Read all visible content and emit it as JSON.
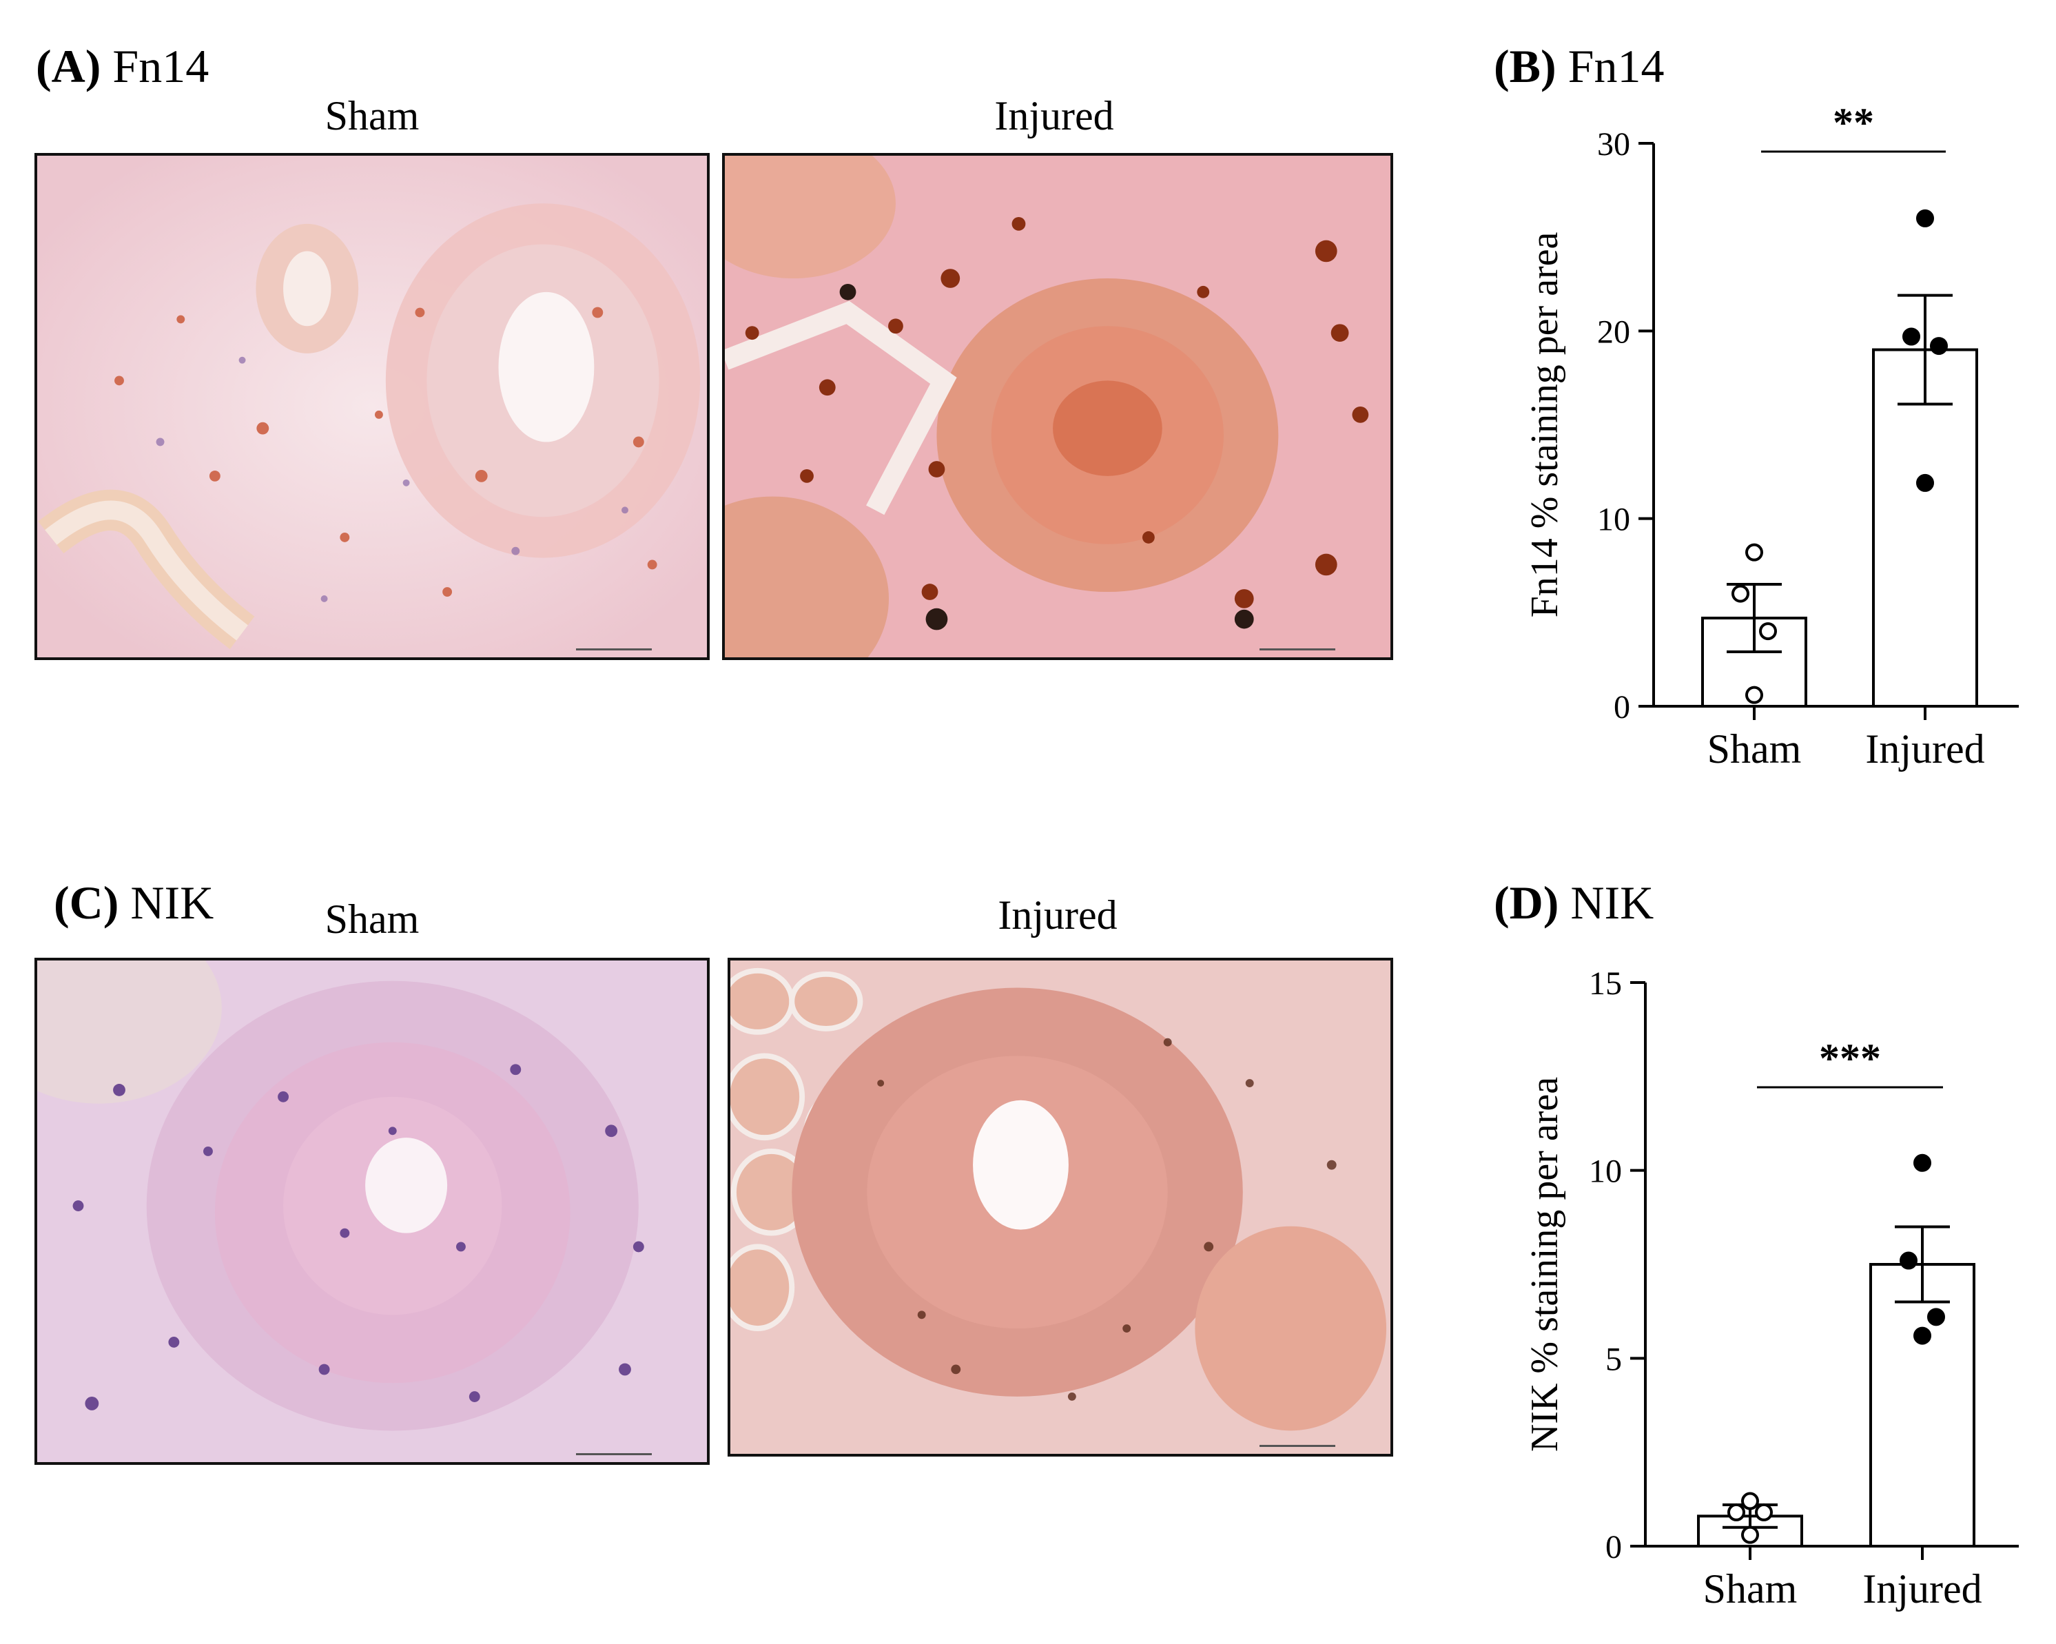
{
  "panels": {
    "A": {
      "letter": "(A)",
      "label": "Fn14",
      "left_title": "Sham",
      "right_title": "Injured"
    },
    "C": {
      "letter": "(C)",
      "label": "NIK",
      "left_title": "Sham",
      "right_title": "Injured"
    },
    "B": {
      "letter": "(B)",
      "label": "Fn14"
    },
    "D": {
      "letter": "(D)",
      "label": "NIK"
    }
  },
  "colors": {
    "sham_fn14_tissue": "#f3d6dc",
    "injured_fn14_tissue": "#eaa9a4",
    "sham_nik_tissue": "#e4c4dc",
    "injured_nik_tissue": "#dfa39c",
    "brown_stain": "#9a3a12",
    "nuclei": "#6a4a8e"
  },
  "chart_data": [
    {
      "type": "bar",
      "categories": [
        "Sham",
        "Injured"
      ],
      "values": [
        4.7,
        19.0
      ],
      "sem": [
        1.8,
        2.9
      ],
      "points": [
        [
          8.2,
          6.0,
          4.0,
          0.6
        ],
        [
          26.0,
          19.7,
          19.2,
          11.9
        ]
      ],
      "point_styles": [
        "open",
        "filled"
      ],
      "ylabel": "Fn14 % staining per area",
      "ylim": [
        0,
        30
      ],
      "yticks": [
        0,
        10,
        20,
        30
      ],
      "significance": "**"
    },
    {
      "type": "bar",
      "categories": [
        "Sham",
        "Injured"
      ],
      "values": [
        0.8,
        7.5
      ],
      "sem": [
        0.3,
        1.0
      ],
      "points": [
        [
          1.2,
          0.9,
          0.9,
          0.3
        ],
        [
          10.2,
          7.6,
          6.1,
          5.6
        ]
      ],
      "point_styles": [
        "open",
        "filled"
      ],
      "ylabel": "NIK % staining per area",
      "ylim": [
        0,
        15
      ],
      "yticks": [
        0,
        5,
        10,
        15
      ],
      "significance": "***"
    }
  ]
}
